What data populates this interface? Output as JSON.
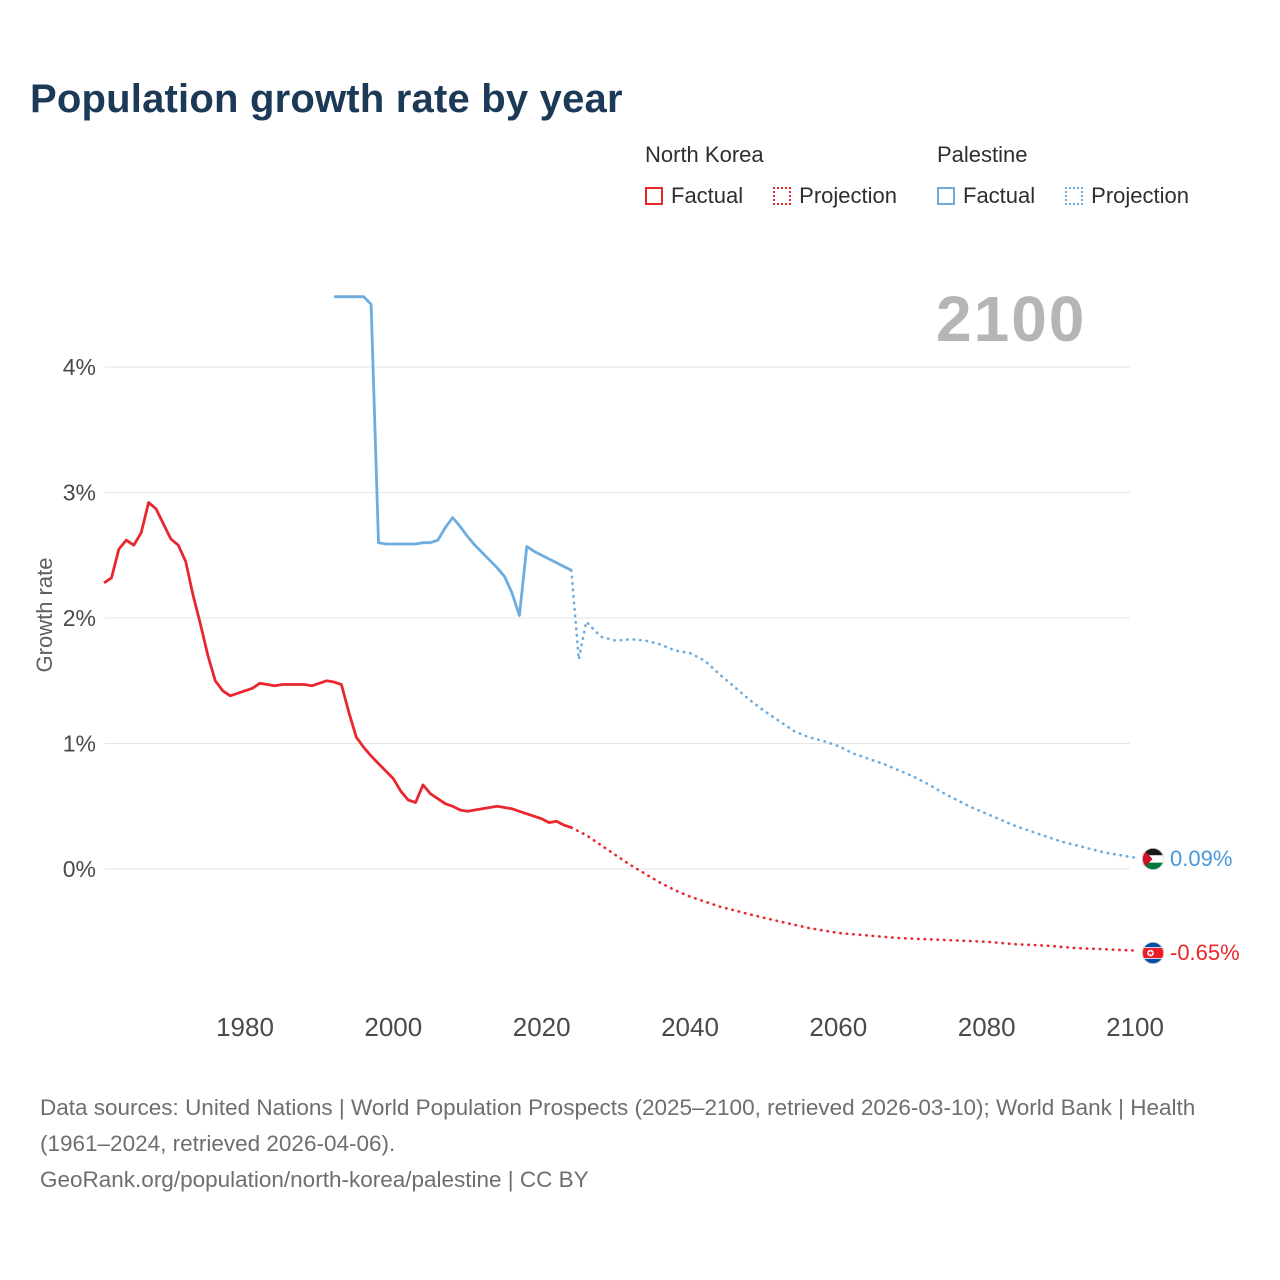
{
  "title": "Population growth rate by year",
  "watermark_year": "2100",
  "legend": {
    "north_korea": {
      "label": "North Korea",
      "factual": "Factual",
      "projection": "Projection",
      "color": "#e8282e"
    },
    "palestine": {
      "label": "Palestine",
      "factual": "Factual",
      "projection": "Projection",
      "color": "#6cacdf"
    }
  },
  "end_labels": {
    "palestine": {
      "icon": "palestine-flag-icon",
      "value": "0.09%"
    },
    "north_korea": {
      "icon": "north-korea-flag-icon",
      "value": "-0.65%"
    }
  },
  "footer": {
    "sources": "Data sources: United Nations | World Population Prospects (2025–2100, retrieved 2026-03-10); World Bank | Health (1961–2024, retrieved 2026-04-06).",
    "attribution": "GeoRank.org/population/north-korea/palestine | CC BY"
  },
  "chart_data": {
    "type": "line",
    "title": "Population growth rate by year",
    "xlabel": "",
    "ylabel": "Growth rate",
    "grid": true,
    "legend_position": "top-right",
    "xlim": [
      1960,
      2105
    ],
    "ylim": [
      -0.9,
      4.75
    ],
    "x_ticks": [
      1980,
      2000,
      2020,
      2040,
      2060,
      2080,
      2100
    ],
    "y_ticks": [
      0,
      1,
      2,
      3,
      4
    ],
    "y_tick_labels": [
      "0%",
      "1%",
      "2%",
      "3%",
      "4%"
    ],
    "series": [
      {
        "id": "north-korea-factual",
        "name": "North Korea — Factual",
        "color": "#e8282e",
        "style": "solid",
        "points": [
          [
            1961,
            2.28
          ],
          [
            1962,
            2.32
          ],
          [
            1963,
            2.55
          ],
          [
            1964,
            2.62
          ],
          [
            1965,
            2.58
          ],
          [
            1966,
            2.68
          ],
          [
            1967,
            2.92
          ],
          [
            1968,
            2.87
          ],
          [
            1969,
            2.75
          ],
          [
            1970,
            2.63
          ],
          [
            1971,
            2.58
          ],
          [
            1972,
            2.45
          ],
          [
            1973,
            2.18
          ],
          [
            1974,
            1.95
          ],
          [
            1975,
            1.7
          ],
          [
            1976,
            1.5
          ],
          [
            1977,
            1.42
          ],
          [
            1978,
            1.38
          ],
          [
            1979,
            1.4
          ],
          [
            1980,
            1.42
          ],
          [
            1981,
            1.44
          ],
          [
            1982,
            1.48
          ],
          [
            1983,
            1.47
          ],
          [
            1984,
            1.46
          ],
          [
            1985,
            1.47
          ],
          [
            1986,
            1.47
          ],
          [
            1987,
            1.47
          ],
          [
            1988,
            1.47
          ],
          [
            1989,
            1.46
          ],
          [
            1990,
            1.48
          ],
          [
            1991,
            1.5
          ],
          [
            1992,
            1.49
          ],
          [
            1993,
            1.47
          ],
          [
            1994,
            1.25
          ],
          [
            1995,
            1.05
          ],
          [
            1996,
            0.97
          ],
          [
            1997,
            0.9
          ],
          [
            1998,
            0.84
          ],
          [
            1999,
            0.78
          ],
          [
            2000,
            0.72
          ],
          [
            2001,
            0.62
          ],
          [
            2002,
            0.55
          ],
          [
            2003,
            0.53
          ],
          [
            2004,
            0.67
          ],
          [
            2005,
            0.6
          ],
          [
            2006,
            0.56
          ],
          [
            2007,
            0.52
          ],
          [
            2008,
            0.5
          ],
          [
            2009,
            0.47
          ],
          [
            2010,
            0.46
          ],
          [
            2011,
            0.47
          ],
          [
            2012,
            0.48
          ],
          [
            2013,
            0.49
          ],
          [
            2014,
            0.5
          ],
          [
            2015,
            0.49
          ],
          [
            2016,
            0.48
          ],
          [
            2017,
            0.46
          ],
          [
            2018,
            0.44
          ],
          [
            2019,
            0.42
          ],
          [
            2020,
            0.4
          ],
          [
            2021,
            0.37
          ],
          [
            2022,
            0.38
          ],
          [
            2023,
            0.35
          ],
          [
            2024,
            0.33
          ]
        ]
      },
      {
        "id": "north-korea-projection",
        "name": "North Korea — Projection",
        "color": "#e8282e",
        "style": "dotted",
        "points": [
          [
            2024,
            0.33
          ],
          [
            2026,
            0.27
          ],
          [
            2028,
            0.19
          ],
          [
            2030,
            0.11
          ],
          [
            2032,
            0.03
          ],
          [
            2034,
            -0.04
          ],
          [
            2036,
            -0.11
          ],
          [
            2038,
            -0.17
          ],
          [
            2040,
            -0.22
          ],
          [
            2042,
            -0.26
          ],
          [
            2044,
            -0.3
          ],
          [
            2046,
            -0.33
          ],
          [
            2048,
            -0.36
          ],
          [
            2050,
            -0.39
          ],
          [
            2053,
            -0.43
          ],
          [
            2056,
            -0.47
          ],
          [
            2060,
            -0.51
          ],
          [
            2064,
            -0.53
          ],
          [
            2068,
            -0.55
          ],
          [
            2072,
            -0.56
          ],
          [
            2076,
            -0.57
          ],
          [
            2080,
            -0.58
          ],
          [
            2084,
            -0.6
          ],
          [
            2088,
            -0.61
          ],
          [
            2092,
            -0.63
          ],
          [
            2096,
            -0.64
          ],
          [
            2100,
            -0.65
          ]
        ]
      },
      {
        "id": "palestine-factual",
        "name": "Palestine — Factual",
        "color": "#6cacdf",
        "style": "solid",
        "points": [
          [
            1992,
            4.56
          ],
          [
            1993,
            4.56
          ],
          [
            1994,
            4.56
          ],
          [
            1995,
            4.56
          ],
          [
            1996,
            4.56
          ],
          [
            1997,
            4.5
          ],
          [
            1998,
            2.6
          ],
          [
            1999,
            2.59
          ],
          [
            2000,
            2.59
          ],
          [
            2001,
            2.59
          ],
          [
            2002,
            2.59
          ],
          [
            2003,
            2.59
          ],
          [
            2004,
            2.6
          ],
          [
            2005,
            2.6
          ],
          [
            2006,
            2.62
          ],
          [
            2007,
            2.72
          ],
          [
            2008,
            2.8
          ],
          [
            2009,
            2.73
          ],
          [
            2010,
            2.65
          ],
          [
            2011,
            2.58
          ],
          [
            2012,
            2.52
          ],
          [
            2013,
            2.46
          ],
          [
            2014,
            2.4
          ],
          [
            2015,
            2.33
          ],
          [
            2016,
            2.2
          ],
          [
            2017,
            2.02
          ],
          [
            2018,
            2.57
          ],
          [
            2019,
            2.53
          ],
          [
            2020,
            2.5
          ],
          [
            2021,
            2.47
          ],
          [
            2022,
            2.44
          ],
          [
            2023,
            2.41
          ],
          [
            2024,
            2.38
          ]
        ]
      },
      {
        "id": "palestine-projection",
        "name": "Palestine — Projection",
        "color": "#6cacdf",
        "style": "dotted",
        "points": [
          [
            2024,
            2.38
          ],
          [
            2025,
            1.67
          ],
          [
            2026,
            1.97
          ],
          [
            2028,
            1.85
          ],
          [
            2030,
            1.82
          ],
          [
            2032,
            1.83
          ],
          [
            2034,
            1.82
          ],
          [
            2036,
            1.79
          ],
          [
            2038,
            1.74
          ],
          [
            2040,
            1.72
          ],
          [
            2042,
            1.66
          ],
          [
            2044,
            1.55
          ],
          [
            2046,
            1.45
          ],
          [
            2048,
            1.35
          ],
          [
            2050,
            1.26
          ],
          [
            2052,
            1.18
          ],
          [
            2054,
            1.1
          ],
          [
            2056,
            1.05
          ],
          [
            2058,
            1.02
          ],
          [
            2060,
            0.98
          ],
          [
            2062,
            0.92
          ],
          [
            2064,
            0.88
          ],
          [
            2066,
            0.84
          ],
          [
            2068,
            0.79
          ],
          [
            2070,
            0.74
          ],
          [
            2072,
            0.68
          ],
          [
            2074,
            0.61
          ],
          [
            2076,
            0.55
          ],
          [
            2078,
            0.49
          ],
          [
            2080,
            0.44
          ],
          [
            2082,
            0.39
          ],
          [
            2084,
            0.34
          ],
          [
            2086,
            0.3
          ],
          [
            2088,
            0.26
          ],
          [
            2090,
            0.22
          ],
          [
            2092,
            0.19
          ],
          [
            2094,
            0.16
          ],
          [
            2096,
            0.13
          ],
          [
            2098,
            0.11
          ],
          [
            2100,
            0.09
          ]
        ]
      }
    ],
    "end_annotations": [
      {
        "series": "Palestine",
        "year": 2100,
        "value": 0.09,
        "label": "0.09%"
      },
      {
        "series": "North Korea",
        "year": 2100,
        "value": -0.65,
        "label": "-0.65%"
      }
    ]
  }
}
